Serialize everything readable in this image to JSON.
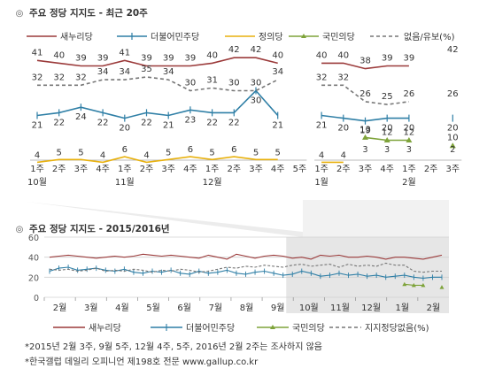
{
  "top_title": "주요 정당 지지도 - 최근 20주",
  "bottom_title": "주요 정당 지지도 - 2015/2016년",
  "title_mark": "◎",
  "footnotes": [
    "*2015년 2월 3주, 9월 5주, 12월 4주, 5주, 2016년 2월 2주는 조사하지 않음",
    "*한국갤럽 데일리 오피니언 제198호 전문 www.gallup.co.kr"
  ],
  "chart_data": [
    {
      "type": "line",
      "title": "주요 정당 지지도 - 최근 20주",
      "categories": [
        "1주",
        "2주",
        "3주",
        "4주",
        "1주",
        "2주",
        "3주",
        "4주",
        "1주",
        "2주",
        "3주",
        "4주",
        "5주",
        "1주",
        "2주",
        "3주",
        "4주",
        "1주",
        "2주",
        "3주"
      ],
      "month_labels": [
        {
          "label": "10월",
          "start": 0
        },
        {
          "label": "11월",
          "start": 4
        },
        {
          "label": "12월",
          "start": 8
        },
        {
          "label": "1월",
          "start": 13
        },
        {
          "label": "2월",
          "start": 17
        }
      ],
      "gap_after_index": 12,
      "legend_position": "top",
      "series": [
        {
          "name": "새누리당",
          "color": "#9b3a3a",
          "values": [
            41,
            40,
            39,
            39,
            41,
            39,
            39,
            39,
            40,
            42,
            42,
            40,
            null,
            40,
            40,
            38,
            39,
            39,
            null,
            42
          ]
        },
        {
          "name": "더불어민주당",
          "color": "#2f7fa6",
          "values": [
            21,
            22,
            24,
            22,
            20,
            22,
            21,
            23,
            22,
            22,
            30,
            21,
            null,
            21,
            20,
            19,
            20,
            20,
            null,
            20
          ]
        },
        {
          "name": "정의당",
          "color": "#e8b10e",
          "values": [
            4,
            5,
            5,
            4,
            6,
            4,
            5,
            6,
            5,
            6,
            5,
            5,
            null,
            4,
            4,
            null,
            null,
            null,
            null,
            null
          ]
        },
        {
          "name": "국민의당",
          "color": "#7ea33a",
          "values": [
            null,
            null,
            null,
            null,
            null,
            null,
            null,
            null,
            null,
            null,
            null,
            null,
            null,
            null,
            null,
            13,
            12,
            12,
            null,
            10
          ]
        },
        {
          "name": "없음/유보(%)",
          "color": "#777777",
          "dashed": true,
          "values": [
            32,
            32,
            32,
            34,
            34,
            35,
            34,
            30,
            31,
            30,
            30,
            34,
            null,
            32,
            32,
            26,
            25,
            26,
            null,
            26
          ]
        }
      ],
      "extra_labels": [
        {
          "series": "국민의당",
          "x_index": 15,
          "value": 3
        },
        {
          "series": "국민의당",
          "x_index": 16,
          "value": 3
        },
        {
          "series": "국민의당",
          "x_index": 17,
          "value": 3
        },
        {
          "series": "국민의당",
          "x_index": 19,
          "value": 2
        }
      ]
    },
    {
      "type": "line",
      "title": "주요 정당 지지도 - 2015/2016년",
      "y_ticks": [
        0,
        20,
        40,
        60
      ],
      "ylim": [
        0,
        60
      ],
      "grid": true,
      "legend_position": "bottom",
      "month_labels": [
        "2월",
        "3월",
        "4월",
        "5월",
        "6월",
        "7월",
        "8월",
        "9월",
        "10월",
        "11월",
        "12월",
        "1월",
        "2월"
      ],
      "highlight_from_month": "10월",
      "series": [
        {
          "name": "새누리당",
          "color": "#9b3a3a",
          "values": [
            40,
            41,
            42,
            41,
            40,
            39,
            40,
            41,
            40,
            41,
            43,
            42,
            41,
            42,
            41,
            40,
            39,
            42,
            40,
            38,
            43,
            41,
            39,
            41,
            42,
            41,
            39,
            40,
            38,
            42,
            41,
            42,
            40,
            40,
            41,
            40,
            38,
            40,
            40,
            39,
            38,
            40,
            42
          ]
        },
        {
          "name": "더불어민주당",
          "color": "#2f7fa6",
          "values": [
            26,
            29,
            30,
            27,
            28,
            29,
            27,
            26,
            28,
            25,
            24,
            26,
            25,
            27,
            24,
            23,
            26,
            24,
            25,
            27,
            24,
            23,
            25,
            26,
            24,
            22,
            23,
            26,
            24,
            21,
            22,
            24,
            22,
            23,
            21,
            22,
            20,
            21,
            22,
            20,
            19,
            20,
            20
          ]
        },
        {
          "name": "국민의당",
          "color": "#7ea33a",
          "values": [
            null,
            null,
            null,
            null,
            null,
            null,
            null,
            null,
            null,
            null,
            null,
            null,
            null,
            null,
            null,
            null,
            null,
            null,
            null,
            null,
            null,
            null,
            null,
            null,
            null,
            null,
            null,
            null,
            null,
            null,
            null,
            null,
            null,
            null,
            null,
            null,
            null,
            null,
            13,
            12,
            12,
            null,
            10
          ]
        },
        {
          "name": "지지정당없음(%)",
          "color": "#777777",
          "dashed": true,
          "values": [
            28,
            27,
            28,
            26,
            27,
            29,
            26,
            27,
            26,
            28,
            27,
            25,
            27,
            26,
            28,
            27,
            25,
            26,
            28,
            30,
            29,
            31,
            30,
            32,
            31,
            30,
            32,
            33,
            31,
            32,
            33,
            30,
            33,
            31,
            32,
            31,
            34,
            32,
            32,
            26,
            25,
            26,
            26
          ]
        }
      ]
    }
  ]
}
